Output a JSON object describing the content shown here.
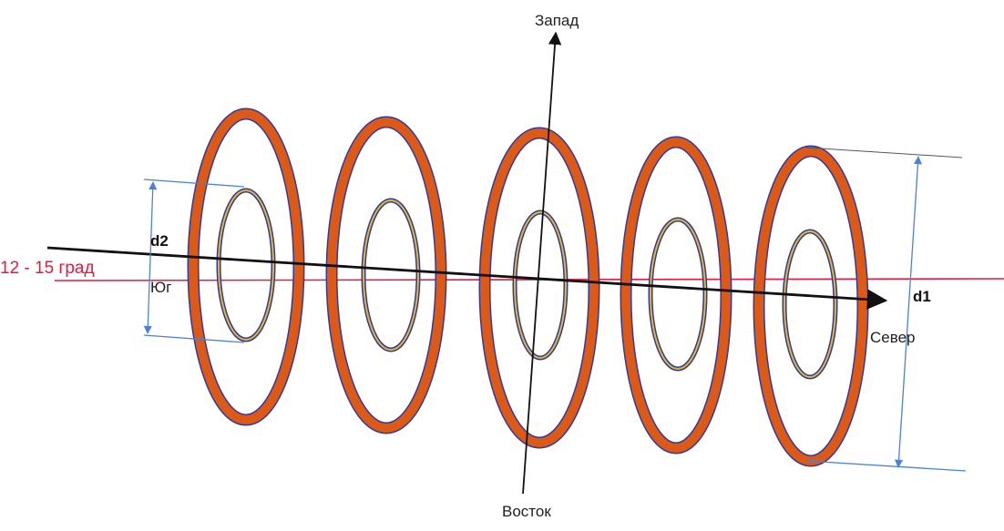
{
  "labels": {
    "west": "Запад",
    "east": "Восток",
    "north": "Север",
    "south": "Юг",
    "d1": "d1",
    "d2": "d2",
    "angle": "12 - 15 град"
  },
  "colors": {
    "ring_outer": "#dc5a16",
    "ring_outline": "#2c3aa6",
    "ring_inner_highlight": "#e8b824",
    "horizon_line": "#e8193c",
    "dimension_line": "#4a82d8",
    "axis": "#111111"
  },
  "ring_count": 5
}
